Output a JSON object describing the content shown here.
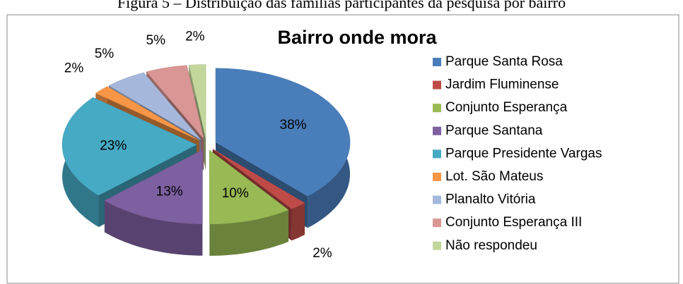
{
  "caption": "Figura 5 – Distribuição das famílias participantes da pesquisa por bairro",
  "chart_data": {
    "type": "pie3d",
    "title": "Bairro onde mora",
    "categories": [
      "Parque Santa Rosa",
      "Jardim Fluminense",
      "Conjunto Esperança",
      "Parque Santana",
      "Parque Presidente Vargas",
      "Lot. São Mateus",
      "Planalto Vitória",
      "Conjunto Esperança III",
      "Não respondeu"
    ],
    "values": [
      38,
      2,
      10,
      13,
      23,
      2,
      5,
      5,
      2
    ],
    "value_labels": [
      "38%",
      "2%",
      "10%",
      "13%",
      "23%",
      "2%",
      "5%",
      "5%",
      "2%"
    ],
    "colors": [
      "#4a7ebb",
      "#be4b48",
      "#98b954",
      "#7d60a0",
      "#46aac5",
      "#f79646",
      "#a5b8dc",
      "#d99694",
      "#c3d69b"
    ],
    "legend": "right"
  }
}
